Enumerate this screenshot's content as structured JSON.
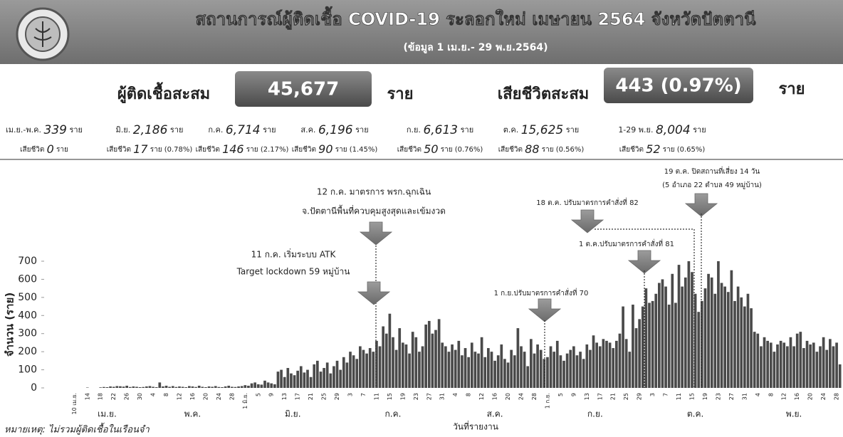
{
  "header": {
    "title": "สถานการณ์ผู้ติดเชื้อ COVID-19 ระลอกใหม่ เมษายน 2564 จังหวัดปัตตานี",
    "subtitle": "(ข้อมูล 1 เม.ย.- 29 พ.ย.2564)",
    "cases_label": "ผู้ติดเชื้อสะสม",
    "cases_total": "45,677",
    "cases_unit": "ราย",
    "deaths_label": "เสียชีวิตสะสม",
    "deaths_total": "443 (0.97%)",
    "deaths_unit": "ราย"
  },
  "monthly": {
    "unit": "ราย",
    "death_label": "เสียชีวิต",
    "items": [
      {
        "period": "เม.ย.-พ.ค.",
        "cases": "339",
        "deaths": "0",
        "death_suffix": "ราย"
      },
      {
        "period": "มิ.ย.",
        "cases": "2,186",
        "deaths": "17",
        "death_suffix": "ราย (0.78%)"
      },
      {
        "period": "ก.ค.",
        "cases": "6,714",
        "deaths": "146",
        "death_suffix": "ราย (2.17%)"
      },
      {
        "period": "ส.ค.",
        "cases": "6,196",
        "deaths": "90",
        "death_suffix": "ราย (1.45%)"
      },
      {
        "period": "ก.ย.",
        "cases": "6,613",
        "deaths": "50",
        "death_suffix": "ราย (0.76%)"
      },
      {
        "period": "ต.ค.",
        "cases": "15,625",
        "deaths": "88",
        "death_suffix": "ราย (0.56%)"
      },
      {
        "period": "1-29 พ.ย.",
        "cases": "8,004",
        "deaths": "52",
        "death_suffix": "ราย (0.65%)"
      }
    ]
  },
  "chart_data": {
    "type": "bar",
    "color": "#4a4a4a",
    "y_label": "จำนวน (ราย)",
    "x_label": "วันที่รายงาน",
    "ylim": [
      0,
      700
    ],
    "yticks": [
      0,
      100,
      200,
      300,
      400,
      500,
      600,
      700
    ],
    "months": [
      "เม.ย.",
      "พ.ค.",
      "มิ.ย.",
      "ก.ค.",
      "ส.ค.",
      "ก.ย.",
      "ต.ค.",
      "พ.ย."
    ],
    "categories": [
      "10 เม.ย.",
      null,
      null,
      null,
      "14",
      null,
      null,
      null,
      "18",
      null,
      null,
      null,
      "22",
      null,
      null,
      null,
      "26",
      null,
      null,
      null,
      "30",
      null,
      null,
      null,
      "4",
      null,
      null,
      null,
      "8",
      null,
      null,
      null,
      "12",
      null,
      null,
      null,
      "16",
      null,
      null,
      null,
      "20",
      null,
      null,
      null,
      "24",
      null,
      null,
      null,
      "28",
      null,
      null,
      null,
      "1 มิ.ย.",
      null,
      null,
      null,
      "5",
      null,
      null,
      null,
      "9",
      null,
      null,
      null,
      "13",
      null,
      null,
      null,
      "17",
      null,
      null,
      null,
      "21",
      null,
      null,
      null,
      "25",
      null,
      null,
      null,
      "29",
      null,
      null,
      null,
      "3",
      null,
      null,
      null,
      "7",
      null,
      null,
      null,
      "11",
      null,
      null,
      null,
      "15",
      null,
      null,
      null,
      "19",
      null,
      null,
      null,
      "23",
      null,
      null,
      null,
      "27",
      null,
      null,
      null,
      "31",
      null,
      null,
      null,
      "4",
      null,
      null,
      null,
      "8",
      null,
      null,
      null,
      "12",
      null,
      null,
      null,
      "16",
      null,
      null,
      null,
      "20",
      null,
      null,
      null,
      "24",
      null,
      null,
      null,
      "28",
      null,
      null,
      null,
      "1 ก.ย.",
      null,
      null,
      null,
      "5",
      null,
      null,
      null,
      "9",
      null,
      null,
      null,
      "13",
      null,
      null,
      null,
      "17",
      null,
      null,
      null,
      "21",
      null,
      null,
      null,
      "25",
      null,
      null,
      null,
      "29",
      null,
      null,
      null,
      "3",
      null,
      null,
      null,
      "7",
      null,
      null,
      null,
      "11",
      null,
      null,
      null,
      "15",
      null,
      null,
      null,
      "19",
      null,
      null,
      null,
      "23",
      null,
      null,
      null,
      "27",
      null,
      null,
      null,
      "31",
      null,
      null,
      null,
      "4",
      null,
      null,
      null,
      "8",
      null,
      null,
      null,
      "12",
      null,
      null,
      null,
      "16",
      null,
      null,
      null,
      "20",
      null,
      null,
      null,
      "24",
      null,
      null,
      null,
      "28",
      null
    ],
    "values": [
      0,
      0,
      0,
      0,
      2,
      0,
      0,
      0,
      3,
      5,
      4,
      8,
      6,
      10,
      9,
      7,
      12,
      5,
      8,
      6,
      4,
      5,
      8,
      10,
      6,
      4,
      30,
      8,
      12,
      6,
      10,
      5,
      8,
      6,
      4,
      10,
      8,
      5,
      12,
      6,
      4,
      8,
      6,
      10,
      5,
      4,
      8,
      12,
      6,
      5,
      8,
      10,
      15,
      12,
      25,
      30,
      20,
      18,
      40,
      30,
      25,
      20,
      90,
      100,
      60,
      110,
      80,
      70,
      95,
      120,
      85,
      100,
      60,
      130,
      150,
      90,
      110,
      140,
      80,
      120,
      150,
      100,
      170,
      140,
      200,
      180,
      160,
      230,
      210,
      190,
      220,
      200,
      260,
      230,
      340,
      300,
      410,
      280,
      210,
      330,
      250,
      240,
      190,
      310,
      280,
      200,
      230,
      350,
      370,
      300,
      320,
      380,
      250,
      230,
      200,
      240,
      210,
      260,
      180,
      220,
      170,
      250,
      200,
      190,
      280,
      170,
      220,
      200,
      150,
      180,
      240,
      160,
      140,
      210,
      180,
      330,
      230,
      200,
      120,
      270,
      190,
      240,
      210,
      160,
      170,
      230,
      200,
      260,
      180,
      150,
      190,
      210,
      230,
      180,
      200,
      160,
      240,
      210,
      290,
      250,
      230,
      270,
      260,
      250,
      220,
      260,
      300,
      450,
      270,
      200,
      460,
      330,
      380,
      450,
      550,
      470,
      480,
      520,
      580,
      600,
      560,
      460,
      630,
      470,
      680,
      560,
      610,
      700,
      640,
      520,
      420,
      480,
      550,
      630,
      610,
      520,
      700,
      580,
      560,
      530,
      650,
      480,
      560,
      500,
      450,
      520,
      440,
      310,
      300,
      230,
      280,
      260,
      250,
      200,
      240,
      260,
      250,
      230,
      280,
      230,
      300,
      310,
      220,
      260,
      240,
      250,
      200,
      230,
      280,
      210,
      270,
      230,
      250,
      130
    ],
    "annotations": [
      {
        "lines": [
          "12 ก.ค. มาตรการ พรก.ฉุกเฉิน",
          "จ.ปัตตานีพื้นที่ควบคุมสูงสุดและเข้มงวด"
        ]
      },
      {
        "lines": [
          "11 ก.ค. เริ่มระบบ ATK",
          "Target lockdown 59 หมู่บ้าน"
        ]
      },
      {
        "lines": [
          "1 ก.ย.ปรับมาตรการคำสั่งที่ 70"
        ]
      },
      {
        "lines": [
          "18 ต.ค. ปรับมาตรการคำสั่งที่ 82"
        ]
      },
      {
        "lines": [
          "1 ต.ค.ปรับมาตรการคำสั่งที่ 81"
        ]
      },
      {
        "lines": [
          "19 ต.ค. ปิดสถานที่เสี่ยง 14 วัน",
          "(5 อำเภอ 22 ตำบล 49 หมู่บ้าน)"
        ]
      }
    ],
    "footnote": "หมายเหตุ: ไม่รวมผู้ติดเชื้อในเรือนจำ"
  }
}
